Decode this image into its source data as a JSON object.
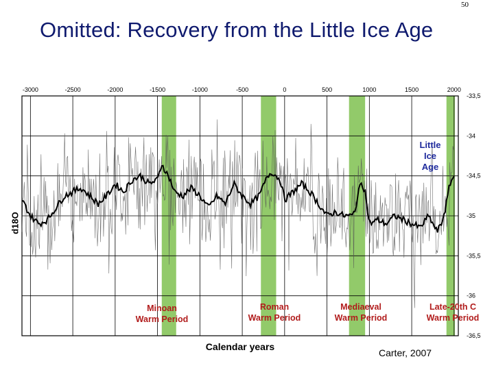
{
  "page_number": "50",
  "title": "Omitted:  Recovery from the Little Ice Age",
  "credit": "Carter, 2007",
  "chart_data": {
    "type": "line",
    "xlabel": "Calendar years",
    "ylabel": "d18O",
    "xlim": [
      -3100,
      2050
    ],
    "ylim": [
      -33.5,
      -36.5
    ],
    "y_inverted": true,
    "x_ticks": [
      "-3000",
      "-2500",
      "-2000",
      "-1500",
      "-1000",
      "-500",
      "0",
      "500",
      "1000",
      "1500",
      "2000"
    ],
    "x_tick_values": [
      -3000,
      -2500,
      -2000,
      -1500,
      -1000,
      -500,
      0,
      500,
      1000,
      1500,
      2000
    ],
    "y_ticks": [
      "-33,5",
      "-34",
      "-34,5",
      "-35",
      "-35,5",
      "-36",
      "-36,5"
    ],
    "y_tick_values": [
      -33.5,
      -34,
      -34.5,
      -35,
      -35.5,
      -36,
      -36.5
    ],
    "grid": true,
    "series": [
      {
        "x": [
          -3100,
          -3000,
          -2900,
          -2800,
          -2700,
          -2600,
          -2500,
          -2400,
          -2300,
          -2200,
          -2100,
          -2000,
          -1900,
          -1800,
          -1700,
          -1600,
          -1500,
          -1450,
          -1400,
          -1350,
          -1300,
          -1200,
          -1100,
          -1000,
          -900,
          -800,
          -700,
          -600,
          -500,
          -400,
          -300,
          -200,
          -150,
          -100,
          -50,
          0,
          100,
          200,
          300,
          400,
          500,
          600,
          700,
          800,
          850,
          900,
          950,
          1000,
          1100,
          1200,
          1300,
          1400,
          1500,
          1600,
          1700,
          1800,
          1850,
          1900,
          1950,
          2000
        ],
        "values": [
          -34.8,
          -35.0,
          -35.1,
          -35.05,
          -34.9,
          -34.75,
          -34.7,
          -34.65,
          -34.75,
          -34.85,
          -34.75,
          -34.6,
          -34.7,
          -34.55,
          -34.5,
          -34.6,
          -34.55,
          -34.35,
          -34.45,
          -34.55,
          -34.7,
          -34.75,
          -34.65,
          -34.75,
          -34.9,
          -34.75,
          -34.85,
          -34.6,
          -34.75,
          -34.85,
          -34.75,
          -34.5,
          -34.45,
          -34.5,
          -34.55,
          -34.8,
          -34.7,
          -34.6,
          -34.7,
          -34.85,
          -35.0,
          -34.95,
          -35.0,
          -35.0,
          -34.85,
          -34.55,
          -34.7,
          -35.1,
          -35.05,
          -35.1,
          -35.0,
          -35.05,
          -35.1,
          -35.15,
          -35.0,
          -35.2,
          -35.1,
          -34.9,
          -34.6,
          -34.5
        ]
      }
    ],
    "warm_periods": [
      {
        "label_lines": [
          "Minoan",
          "Warm Period"
        ],
        "start": -1450,
        "end": -1280
      },
      {
        "label_lines": [
          "Roman",
          "Warm Period"
        ],
        "start": -280,
        "end": -100
      },
      {
        "label_lines": [
          "Mediaeval",
          "Warm Period"
        ],
        "start": 760,
        "end": 950
      },
      {
        "label_lines": [
          "Late-20th C",
          "Warm Period"
        ],
        "start": 1910,
        "end": 2010
      }
    ],
    "annotation_lines": [
      "Little",
      "Ice",
      "Age"
    ]
  }
}
